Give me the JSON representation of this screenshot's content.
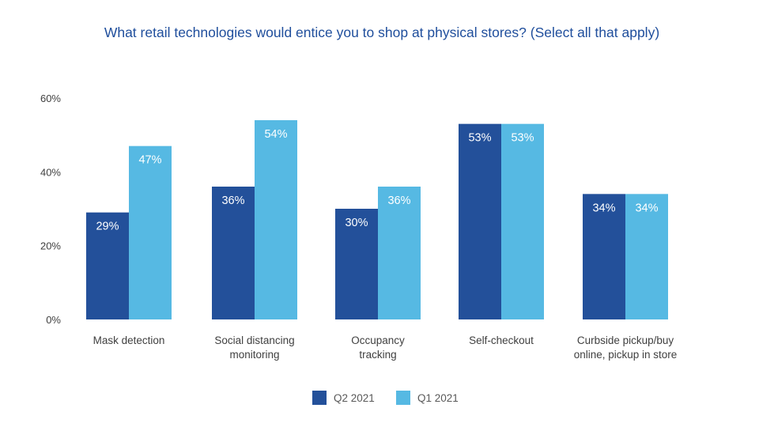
{
  "chart_data": {
    "type": "bar",
    "title": "What retail technologies would entice you to shop at physical stores? (Select all that apply)",
    "categories": [
      [
        "Mask detection"
      ],
      [
        "Social distancing",
        "monitoring"
      ],
      [
        "Occupancy",
        "tracking"
      ],
      [
        "Self-checkout"
      ],
      [
        "Curbside pickup/buy",
        "online, pickup in store"
      ]
    ],
    "series": [
      {
        "name": "Q2 2021",
        "color": "#23509a",
        "values": [
          29,
          36,
          30,
          53,
          34
        ]
      },
      {
        "name": "Q1 2021",
        "color": "#56b9e3",
        "values": [
          47,
          54,
          36,
          53,
          34
        ]
      }
    ],
    "yticks": [
      "0%",
      "20%",
      "40%",
      "60%"
    ],
    "ylim": [
      0,
      60
    ],
    "grid": false,
    "legend": "bottom"
  }
}
